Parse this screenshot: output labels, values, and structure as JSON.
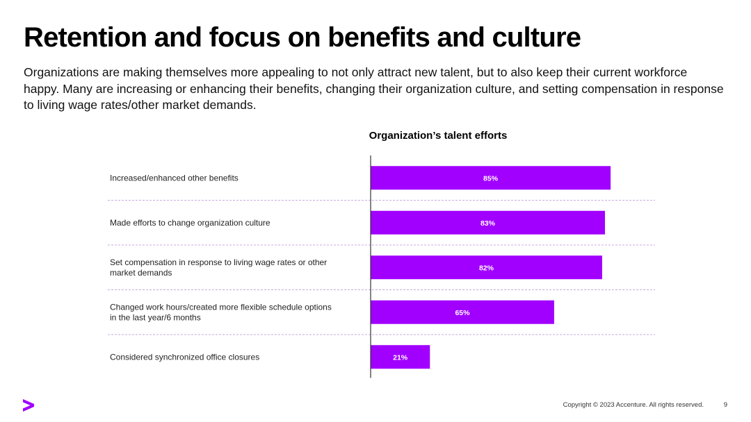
{
  "slide": {
    "title": "Retention and focus on benefits and culture",
    "intro": "Organizations are making themselves more appealing to not only attract new talent, but to also keep their current workforce happy. Many are increasing or enhancing their benefits, changing their organization culture, and setting compensation in response to living wage rates/other market demands."
  },
  "chart_data": {
    "type": "bar",
    "orientation": "horizontal",
    "title": "Organization’s talent efforts",
    "categories": [
      [
        "Increased/enhanced other benefits"
      ],
      [
        "Made efforts to change organization culture"
      ],
      [
        "Set compensation in response to living wage rates or other",
        "market demands"
      ],
      [
        "Changed work hours/created more flexible schedule options",
        "in the last year/6 months"
      ],
      [
        "Considered synchronized office closures"
      ]
    ],
    "values": [
      85,
      83,
      82,
      65,
      21
    ],
    "data_labels": [
      "85%",
      "83%",
      "82%",
      "65%",
      "21%"
    ],
    "unit": "%",
    "xlim": [
      0,
      100
    ],
    "bar_color": "#A100FF",
    "separator_color": "#C9A8E0"
  },
  "footer": {
    "logo_symbol": ">",
    "copyright": "Copyright © 2023 Accenture. All rights reserved.",
    "page_number": "9"
  },
  "colors": {
    "accent": "#A100FF"
  }
}
